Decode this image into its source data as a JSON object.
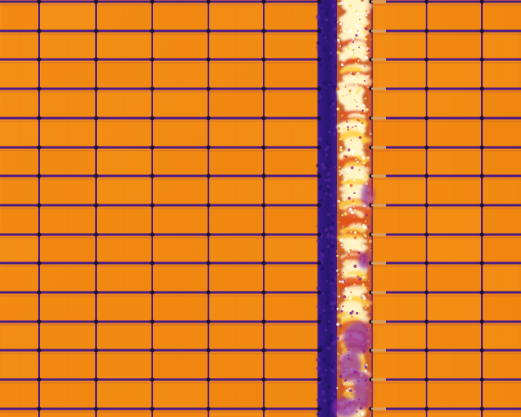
{
  "image": {
    "kind": "thermal-aerial-view",
    "subject": "solar-panel-array",
    "palette": "ironbow",
    "colors": {
      "panel_warm": "#f28a10",
      "panel_cell": "#f59a1a",
      "cell_grid": "#7a1f8f",
      "frame_line": "#4b1a86",
      "gap_cold": "#2b1a7a",
      "hotspot_core": "#fff6c8",
      "hotspot_mid": "#ffd24a",
      "hotspot_edge": "#e0541a",
      "node": "#1a1030"
    }
  }
}
